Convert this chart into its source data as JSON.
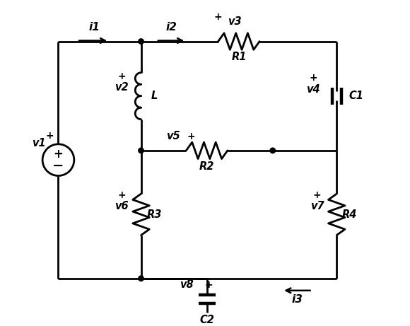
{
  "bg_color": "#ffffff",
  "line_color": "#000000",
  "lw": 2.0,
  "figsize": [
    5.8,
    4.61
  ],
  "dpi": 100,
  "xlim": [
    0,
    10
  ],
  "ylim": [
    0,
    8.6
  ]
}
